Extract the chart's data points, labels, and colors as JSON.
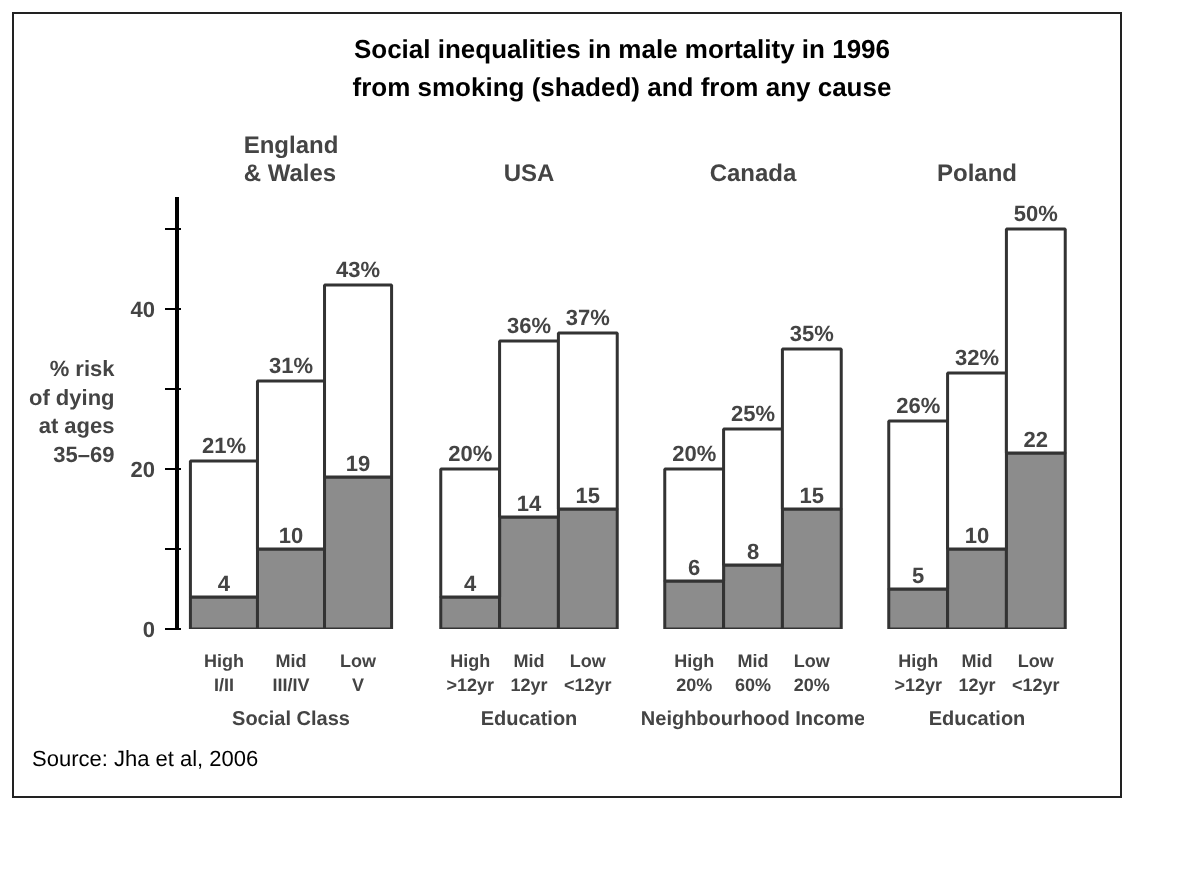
{
  "chart_data": [
    {
      "type": "bar",
      "title": "England\n& Wales",
      "xlabel": "Social Class",
      "ylabel": "% risk\nof dying\nat ages\n35–69",
      "stacked": true,
      "grid": false,
      "annotations": [
        "Social inequalities in male mortality in 1996\nfrom smoking (shaded) and from any cause",
        "Source: Jha et al, 2006"
      ],
      "categories": [
        "High\nI/II",
        "Mid\nIII/IV",
        "Low\nV"
      ],
      "series": [
        {
          "color": "#8c8c8c",
          "values": [
            4,
            10,
            19
          ],
          "value_labels": [
            "4",
            "10",
            "19"
          ]
        },
        {
          "color": "#ffffff",
          "values": [
            17,
            21,
            24
          ]
        }
      ],
      "totals": [
        "21%",
        "31%",
        "43%"
      ],
      "ylim": [
        0,
        54
      ],
      "yticks": [
        0,
        {
          "value": 10,
          "label": null
        },
        20,
        {
          "value": 30,
          "label": null
        },
        40,
        {
          "value": 50,
          "label": null
        }
      ]
    },
    {
      "type": "bar",
      "title": "USA",
      "xlabel": "Education",
      "stacked": true,
      "grid": false,
      "tick_labels": "x",
      "categories": [
        "High\n>12yr",
        "Mid\n12yr",
        "Low\n<12yr"
      ],
      "series": [
        {
          "color": "#8c8c8c",
          "values": [
            4,
            14,
            15
          ],
          "value_labels": [
            "4",
            "14",
            "15"
          ]
        },
        {
          "color": "#ffffff",
          "values": [
            16,
            22,
            22
          ]
        }
      ],
      "totals": [
        "20%",
        "36%",
        "37%"
      ]
    },
    {
      "type": "bar",
      "title": "Canada",
      "xlabel": "Neighbourhood Income",
      "stacked": true,
      "grid": false,
      "tick_labels": "x",
      "categories": [
        "High\n20%",
        "Mid\n60%",
        "Low\n20%"
      ],
      "series": [
        {
          "color": "#8c8c8c",
          "values": [
            6,
            8,
            15
          ],
          "value_labels": [
            "6",
            "8",
            "15"
          ]
        },
        {
          "color": "#ffffff",
          "values": [
            14,
            17,
            20
          ]
        }
      ],
      "totals": [
        "20%",
        "25%",
        "35%"
      ]
    },
    {
      "type": "bar",
      "title": "Poland",
      "xlabel": "Education",
      "stacked": true,
      "grid": false,
      "tick_labels": "x",
      "categories": [
        "High\n>12yr",
        "Mid\n12yr",
        "Low\n<12yr"
      ],
      "series": [
        {
          "color": "#8c8c8c",
          "values": [
            5,
            10,
            22
          ],
          "value_labels": [
            "5",
            "10",
            "22"
          ]
        },
        {
          "color": "#ffffff",
          "values": [
            21,
            22,
            28
          ]
        }
      ],
      "totals": [
        "26%",
        "32%",
        "50%"
      ]
    }
  ]
}
